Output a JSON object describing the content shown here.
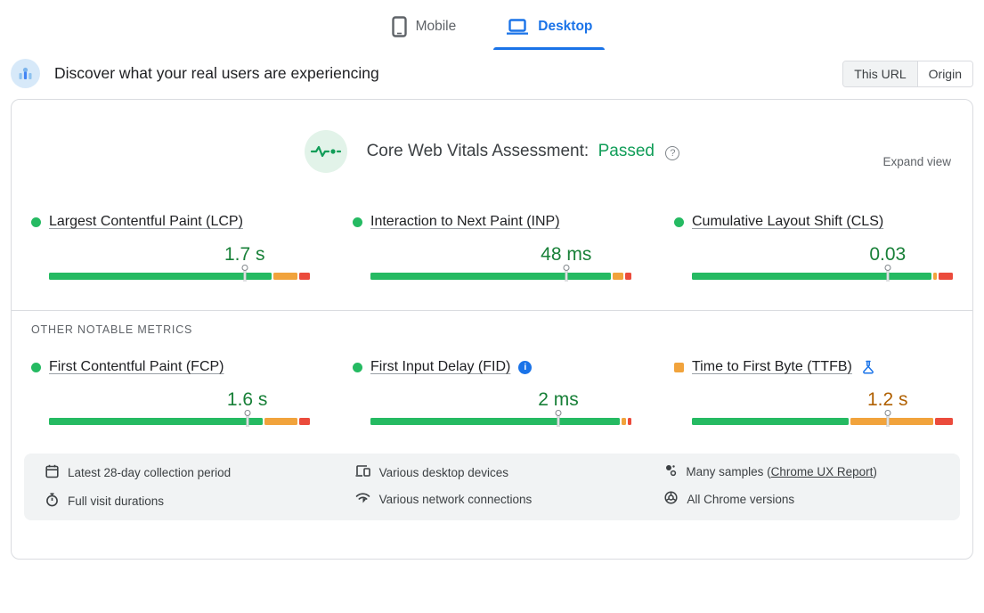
{
  "tabs": {
    "mobile": "Mobile",
    "desktop": "Desktop"
  },
  "header": {
    "title": "Discover what your real users are experiencing",
    "scope_this_url": "This URL",
    "scope_origin": "Origin"
  },
  "assessment": {
    "title": "Core Web Vitals Assessment:",
    "status": "Passed",
    "expand_view": "Expand view"
  },
  "other_metrics_label": "OTHER NOTABLE METRICS",
  "colors": {
    "good_bar": "#25ba62",
    "ni_bar": "#f1a33c",
    "poor_bar": "#eb4b3c",
    "good_text": "#188038",
    "ni_text": "#b06000",
    "passed_text": "#109d58",
    "accent_blue": "#1a73e8"
  },
  "metrics": [
    {
      "label": "Largest Contentful Paint (LCP)",
      "value": "1.7 s",
      "status": "good",
      "indicator": "circle",
      "badge": null,
      "distribution": {
        "good": 86.5,
        "needs_improvement": 9.5,
        "poor": 4
      },
      "marker_pct": 75
    },
    {
      "label": "Interaction to Next Paint (INP)",
      "value": "48 ms",
      "status": "good",
      "indicator": "circle",
      "badge": null,
      "distribution": {
        "good": 93.5,
        "needs_improvement": 4,
        "poor": 2.5
      },
      "marker_pct": 75
    },
    {
      "label": "Cumulative Layout Shift (CLS)",
      "value": "0.03",
      "status": "good",
      "indicator": "circle",
      "badge": null,
      "distribution": {
        "good": 93,
        "needs_improvement": 1.5,
        "poor": 5.5
      },
      "marker_pct": 75
    },
    {
      "label": "First Contentful Paint (FCP)",
      "value": "1.6 s",
      "status": "good",
      "indicator": "circle",
      "badge": "info",
      "distribution": {
        "good": 83,
        "needs_improvement": 13,
        "poor": 4
      },
      "marker_pct": 76
    },
    {
      "label": "First Input Delay (FID)",
      "value": "2 ms",
      "status": "good",
      "indicator": "circle",
      "badge": "info",
      "distribution": {
        "good": 97,
        "needs_improvement": 1.5,
        "poor": 1.5
      },
      "marker_pct": 72
    },
    {
      "label": "Time to First Byte (TTFB)",
      "value": "1.2 s",
      "status": "ni",
      "indicator": "square",
      "badge": "experimental",
      "distribution": {
        "good": 61,
        "needs_improvement": 32,
        "poor": 7
      },
      "marker_pct": 75
    }
  ],
  "footer": {
    "items": [
      {
        "icon": "calendar-icon",
        "text": "Latest 28-day collection period"
      },
      {
        "icon": "stopwatch-icon",
        "text": "Full visit durations"
      },
      {
        "icon": "devices-icon",
        "text": "Various desktop devices"
      },
      {
        "icon": "network-icon",
        "text": "Various network connections"
      },
      {
        "icon": "samples-icon",
        "text_prefix": "Many samples (",
        "link": "Chrome UX Report",
        "text_suffix": ")"
      },
      {
        "icon": "chrome-icon",
        "text": "All Chrome versions"
      }
    ]
  }
}
